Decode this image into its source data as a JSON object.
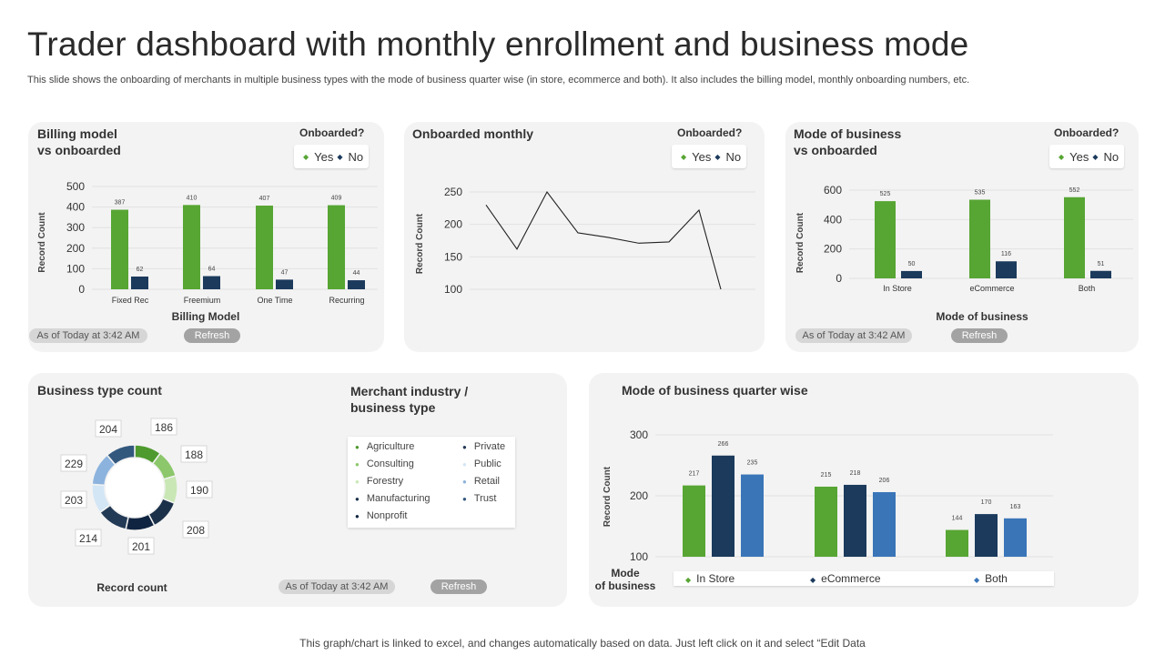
{
  "title": "Trader dashboard with monthly enrollment and business mode",
  "subtitle": "This slide shows the onboarding of merchants in multiple business types with the mode of business quarter wise (in store, ecommerce and both). It also includes the billing model, monthly onboarding numbers, etc.",
  "footer": "This graph/chart is linked to excel,  and changes automatically based on data. Just left click on it and select “Edit Data",
  "legend": {
    "yes": "Yes",
    "no": "No"
  },
  "colors": {
    "yes": "#57a533",
    "no": "#1b3a5c",
    "both": "#3a75b8",
    "line": "#222222"
  },
  "panels": {
    "billing": {
      "title_line1": "Billing model",
      "title_line2": "vs onboarded",
      "legend_title": "Onboarded?",
      "as_of": "As of Today at 3:42 AM",
      "refresh": "Refresh"
    },
    "monthly": {
      "title": "Onboarded monthly",
      "legend_title": "Onboarded?"
    },
    "mode": {
      "title_line1": "Mode of business",
      "title_line2": "vs onboarded",
      "legend_title": "Onboarded?",
      "as_of": "As of Today at 3:42 AM",
      "refresh": "Refresh"
    },
    "business_type": {
      "title": "Business type count",
      "legend_title_line1": "Merchant industry /",
      "legend_title_line2": "business type",
      "as_of": "As of Today at 3:42 AM",
      "refresh": "Refresh"
    },
    "quarter": {
      "title": "Mode of business quarter wise"
    }
  },
  "chart_data": [
    {
      "id": "billing",
      "type": "bar",
      "categories": [
        "Fixed Rec",
        "Freemium",
        "One Time",
        "Recurring"
      ],
      "series": [
        {
          "name": "Yes",
          "values": [
            387,
            410,
            407,
            409
          ],
          "color": "#57a533"
        },
        {
          "name": "No",
          "values": [
            62,
            64,
            47,
            44
          ],
          "color": "#1b3a5c"
        }
      ],
      "xlabel": "Billing  Model",
      "ylabel": "Record Count",
      "yticks": [
        0,
        100,
        200,
        300,
        400,
        500
      ],
      "ylim": [
        0,
        500
      ]
    },
    {
      "id": "monthly",
      "type": "line",
      "values": [
        230,
        162,
        250,
        187,
        180,
        171,
        173,
        222,
        100
      ],
      "ylabel": "Record Count",
      "yticks": [
        100,
        150,
        200,
        250
      ],
      "ylim": [
        100,
        250
      ]
    },
    {
      "id": "mode",
      "type": "bar",
      "categories": [
        "In Store",
        "eCommerce",
        "Both"
      ],
      "series": [
        {
          "name": "Yes",
          "values": [
            525,
            535,
            552
          ],
          "color": "#57a533"
        },
        {
          "name": "No",
          "values": [
            50,
            116,
            51
          ],
          "color": "#1b3a5c"
        }
      ],
      "xlabel": "Mode of business",
      "ylabel": "Record Count",
      "yticks": [
        0,
        200,
        400,
        600
      ],
      "ylim": [
        0,
        600
      ]
    },
    {
      "id": "business_type",
      "type": "pie",
      "xlabel": "Record count",
      "slices": [
        {
          "label": "Agriculture",
          "value": 186,
          "color": "#4e9a2e"
        },
        {
          "label": "Consulting",
          "value": 188,
          "color": "#8cc76b"
        },
        {
          "label": "Forestry",
          "value": 190,
          "color": "#c9e7b5"
        },
        {
          "label": "Manufacturing",
          "value": 208,
          "color": "#1b3149"
        },
        {
          "label": "Nonprofit",
          "value": 201,
          "color": "#0f2440"
        },
        {
          "label": "Private",
          "value": 214,
          "color": "#223a55"
        },
        {
          "label": "Public",
          "value": 203,
          "color": "#d3e6f5"
        },
        {
          "label": "Retail",
          "value": 229,
          "color": "#8cb3dd"
        },
        {
          "label": "Trust",
          "value": 204,
          "color": "#33587e"
        }
      ]
    },
    {
      "id": "quarter",
      "type": "bar",
      "groups": 3,
      "series": [
        {
          "name": "In Store",
          "values": [
            217,
            215,
            144
          ],
          "color": "#57a533"
        },
        {
          "name": "eCommerce",
          "values": [
            266,
            218,
            170
          ],
          "color": "#1b3a5c"
        },
        {
          "name": "Both",
          "values": [
            235,
            206,
            163
          ],
          "color": "#3a75b8"
        }
      ],
      "xlabel_line1": "Mode",
      "xlabel_line2": "of business",
      "ylabel": "Record Count",
      "yticks": [
        100,
        200,
        300
      ],
      "ylim": [
        100,
        300
      ]
    }
  ]
}
